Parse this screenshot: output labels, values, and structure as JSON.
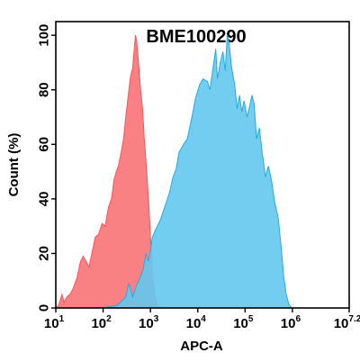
{
  "chart_data": {
    "type": "area",
    "title": "BME100290",
    "xlabel": "APC-A",
    "ylabel": "Count  (%)",
    "x_scale": "log",
    "xlim": [
      10,
      15848932
    ],
    "ylim": [
      0,
      105
    ],
    "grid": false,
    "legend": "none",
    "x_ticks": [
      {
        "base": "10",
        "exp": "1",
        "value": 10
      },
      {
        "base": "10",
        "exp": "2",
        "value": 100
      },
      {
        "base": "10",
        "exp": "3",
        "value": 1000
      },
      {
        "base": "10",
        "exp": "4",
        "value": 10000
      },
      {
        "base": "10",
        "exp": "5",
        "value": 100000
      },
      {
        "base": "10",
        "exp": "6",
        "value": 1000000
      },
      {
        "base": "10",
        "exp": "7.2",
        "value": 15848932
      }
    ],
    "y_ticks": [
      "0",
      "20",
      "40",
      "60",
      "80",
      "100"
    ],
    "series": [
      {
        "color": "#f2575a",
        "fill": "#f97a7c",
        "opacity": 0.95,
        "points": [
          [
            10,
            0
          ],
          [
            11.5,
            1
          ],
          [
            13.5,
            5
          ],
          [
            15,
            2
          ],
          [
            17,
            4
          ],
          [
            20,
            5
          ],
          [
            23,
            7
          ],
          [
            28,
            11
          ],
          [
            33,
            17
          ],
          [
            38,
            19
          ],
          [
            44,
            17
          ],
          [
            50,
            15
          ],
          [
            58,
            20
          ],
          [
            68,
            26
          ],
          [
            80,
            27
          ],
          [
            95,
            31
          ],
          [
            110,
            30
          ],
          [
            130,
            37
          ],
          [
            150,
            40
          ],
          [
            170,
            47
          ],
          [
            190,
            50
          ],
          [
            210,
            52
          ],
          [
            240,
            57
          ],
          [
            270,
            62
          ],
          [
            300,
            70
          ],
          [
            340,
            78
          ],
          [
            380,
            85
          ],
          [
            420,
            88
          ],
          [
            460,
            96
          ],
          [
            480,
            100
          ],
          [
            510,
            98
          ],
          [
            560,
            90
          ],
          [
            620,
            80
          ],
          [
            680,
            73
          ],
          [
            740,
            62
          ],
          [
            820,
            52
          ],
          [
            920,
            38
          ],
          [
            1000,
            26
          ],
          [
            1070,
            18
          ],
          [
            1150,
            10
          ],
          [
            1250,
            4
          ],
          [
            1400,
            1
          ],
          [
            1600,
            0
          ]
        ]
      },
      {
        "color": "#27a9dc",
        "fill": "#63c8ef",
        "opacity": 0.9,
        "points": [
          [
            40,
            0
          ],
          [
            100,
            0
          ],
          [
            200,
            1
          ],
          [
            300,
            4
          ],
          [
            350,
            9
          ],
          [
            420,
            4
          ],
          [
            500,
            8
          ],
          [
            600,
            11
          ],
          [
            700,
            14
          ],
          [
            800,
            20
          ],
          [
            900,
            17
          ],
          [
            1000,
            21
          ],
          [
            1100,
            26
          ],
          [
            1300,
            29
          ],
          [
            1600,
            32
          ],
          [
            2000,
            37
          ],
          [
            2500,
            42
          ],
          [
            3000,
            48
          ],
          [
            3500,
            51
          ],
          [
            4000,
            57
          ],
          [
            5000,
            60
          ],
          [
            6000,
            62
          ],
          [
            7500,
            70
          ],
          [
            9000,
            77
          ],
          [
            11000,
            82
          ],
          [
            13000,
            84
          ],
          [
            16000,
            83
          ],
          [
            18000,
            80
          ],
          [
            21000,
            88
          ],
          [
            24000,
            95
          ],
          [
            26000,
            84
          ],
          [
            30000,
            90
          ],
          [
            34000,
            94
          ],
          [
            38000,
            87
          ],
          [
            42000,
            100
          ],
          [
            46000,
            97
          ],
          [
            52000,
            88
          ],
          [
            60000,
            82
          ],
          [
            68000,
            73
          ],
          [
            76000,
            78
          ],
          [
            85000,
            72
          ],
          [
            95000,
            76
          ],
          [
            110000,
            70
          ],
          [
            125000,
            74
          ],
          [
            140000,
            78
          ],
          [
            155000,
            75
          ],
          [
            175000,
            62
          ],
          [
            200000,
            66
          ],
          [
            230000,
            57
          ],
          [
            270000,
            48
          ],
          [
            310000,
            52
          ],
          [
            360000,
            47
          ],
          [
            420000,
            39
          ],
          [
            500000,
            33
          ],
          [
            580000,
            22
          ],
          [
            650000,
            12
          ],
          [
            740000,
            5
          ],
          [
            850000,
            1
          ],
          [
            1000000,
            0
          ]
        ]
      }
    ]
  }
}
